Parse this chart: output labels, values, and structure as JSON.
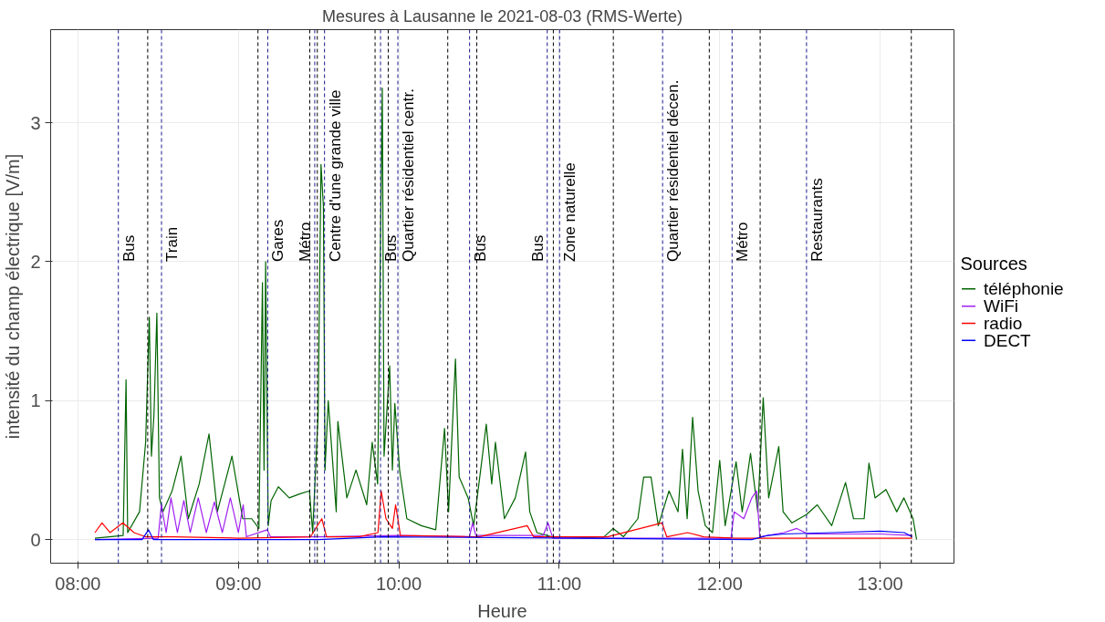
{
  "chart_data": {
    "type": "line",
    "title": "Mesures à Lausanne le 2021-08-03 (RMS-Werte)",
    "xlabel": "Heure",
    "ylabel": "intensité du champ électrique [V/m]",
    "legend_title": "Sources",
    "legend": "right",
    "grid": true,
    "xlim": [
      7.83,
      13.46
    ],
    "xticks": [
      {
        "value": 8,
        "label": "08:00"
      },
      {
        "value": 9,
        "label": "09:00"
      },
      {
        "value": 10,
        "label": "10:00"
      },
      {
        "value": 11,
        "label": "11:00"
      },
      {
        "value": 12,
        "label": "12:00"
      },
      {
        "value": 13,
        "label": "13:00"
      }
    ],
    "ylim": [
      -0.17,
      3.67
    ],
    "yticks": [
      0,
      1,
      2,
      3
    ],
    "series": [
      {
        "name": "téléphonie",
        "color": "#006400",
        "x": [
          8.106,
          8.282,
          8.3,
          8.31,
          8.384,
          8.422,
          8.445,
          8.458,
          8.474,
          8.492,
          8.508,
          8.53,
          8.587,
          8.643,
          8.688,
          8.756,
          8.817,
          8.869,
          8.96,
          9.027,
          9.083,
          9.128,
          9.15,
          9.16,
          9.17,
          9.186,
          9.204,
          9.249,
          9.317,
          9.385,
          9.443,
          9.463,
          9.497,
          9.515,
          9.53,
          9.54,
          9.56,
          9.61,
          9.62,
          9.676,
          9.733,
          9.8,
          9.834,
          9.868,
          9.897,
          9.908,
          9.943,
          9.96,
          9.975,
          10.005,
          10.05,
          10.14,
          10.23,
          10.285,
          10.31,
          10.353,
          10.376,
          10.432,
          10.466,
          10.51,
          10.545,
          10.579,
          10.602,
          10.658,
          10.726,
          10.79,
          10.816,
          10.861,
          10.952,
          11.04,
          11.27,
          11.336,
          11.4,
          11.49,
          11.526,
          11.572,
          11.617,
          11.684,
          11.74,
          11.768,
          11.797,
          11.831,
          11.865,
          11.91,
          11.955,
          12.0,
          12.034,
          12.102,
          12.14,
          12.192,
          12.237,
          12.271,
          12.305,
          12.368,
          12.395,
          12.45,
          12.54,
          12.608,
          12.698,
          12.784,
          12.834,
          12.9,
          12.93,
          12.968,
          13.036,
          13.103,
          13.148,
          13.205,
          13.227
        ],
        "values": [
          0.01,
          0.03,
          1.15,
          0.05,
          0.2,
          0.7,
          1.6,
          0.6,
          0.9,
          1.63,
          0.3,
          0.2,
          0.35,
          0.6,
          0.15,
          0.4,
          0.76,
          0.2,
          0.6,
          0.15,
          0.15,
          0.08,
          1.85,
          0.5,
          2.0,
          0.1,
          0.28,
          0.38,
          0.3,
          0.33,
          0.35,
          0.05,
          0.9,
          2.7,
          2.4,
          0.5,
          1.0,
          0.2,
          0.85,
          0.3,
          0.5,
          0.25,
          0.7,
          0.4,
          3.25,
          0.6,
          1.25,
          0.5,
          0.98,
          0.5,
          0.15,
          0.1,
          0.07,
          0.8,
          0.2,
          1.3,
          0.45,
          0.3,
          0.1,
          0.5,
          0.83,
          0.4,
          0.7,
          0.15,
          0.3,
          0.63,
          0.2,
          0.05,
          0.02,
          0.02,
          0.01,
          0.08,
          0.02,
          0.15,
          0.45,
          0.45,
          0.1,
          0.35,
          0.2,
          0.65,
          0.15,
          0.88,
          0.35,
          0.1,
          0.05,
          0.57,
          0.1,
          0.56,
          0.2,
          0.62,
          0.2,
          1.02,
          0.3,
          0.67,
          0.2,
          0.12,
          0.18,
          0.25,
          0.1,
          0.41,
          0.15,
          0.15,
          0.55,
          0.3,
          0.36,
          0.2,
          0.3,
          0.15,
          0.0
        ]
      },
      {
        "name": "WiFi",
        "color": "#a020f0",
        "x": [
          8.106,
          8.5,
          8.52,
          8.55,
          8.58,
          8.62,
          8.66,
          8.7,
          8.75,
          8.8,
          8.85,
          8.9,
          8.95,
          9.0,
          9.03,
          9.05,
          9.18,
          9.2,
          9.5,
          10.0,
          10.44,
          10.46,
          10.48,
          10.9,
          10.93,
          10.96,
          11.5,
          12.07,
          12.09,
          12.15,
          12.2,
          12.23,
          12.25,
          12.4,
          12.48,
          12.55,
          13.0,
          13.2
        ],
        "values": [
          0.0,
          0.01,
          0.25,
          0.05,
          0.3,
          0.05,
          0.28,
          0.05,
          0.3,
          0.05,
          0.27,
          0.05,
          0.3,
          0.05,
          0.25,
          0.02,
          0.07,
          0.02,
          0.02,
          0.03,
          0.02,
          0.12,
          0.03,
          0.03,
          0.12,
          0.01,
          0.01,
          0.01,
          0.2,
          0.15,
          0.3,
          0.35,
          0.02,
          0.05,
          0.08,
          0.04,
          0.04,
          0.03
        ]
      },
      {
        "name": "radio",
        "color": "#ff0000",
        "x": [
          8.106,
          8.15,
          8.2,
          8.28,
          8.35,
          8.42,
          8.6,
          9.0,
          9.45,
          9.52,
          9.55,
          9.75,
          9.87,
          9.89,
          9.92,
          9.96,
          9.98,
          10.01,
          10.5,
          10.8,
          10.84,
          11.3,
          11.64,
          11.67,
          11.8,
          11.9,
          12.1,
          13.2
        ],
        "values": [
          0.05,
          0.12,
          0.05,
          0.12,
          0.05,
          0.02,
          0.02,
          0.01,
          0.02,
          0.15,
          0.02,
          0.02,
          0.05,
          0.35,
          0.15,
          0.08,
          0.25,
          0.03,
          0.02,
          0.1,
          0.02,
          0.02,
          0.12,
          0.02,
          0.05,
          0.02,
          0.01,
          0.01
        ]
      },
      {
        "name": "DECT",
        "color": "#0000ff",
        "x": [
          8.106,
          8.4,
          8.44,
          8.47,
          9.5,
          9.9,
          12.2,
          12.3,
          12.4,
          12.7,
          13.0,
          13.15,
          13.2
        ],
        "values": [
          0.0,
          0.0,
          0.07,
          0.0,
          0.0,
          0.02,
          0.0,
          0.03,
          0.04,
          0.05,
          0.06,
          0.05,
          0.02
        ]
      }
    ],
    "ref_lines": [
      {
        "axis": "x",
        "value": 8.252,
        "label": "Bus",
        "color": "#1a1a8c",
        "line_style": "dashed"
      },
      {
        "axis": "x",
        "value": 8.435,
        "label": null,
        "color": "#000000",
        "line_style": "dashed"
      },
      {
        "axis": "x",
        "value": 8.521,
        "label": "Train",
        "color": "#1a1a8c",
        "line_style": "dashed"
      },
      {
        "axis": "x",
        "value": 9.122,
        "label": null,
        "color": "#000000",
        "line_style": "dashed"
      },
      {
        "axis": "x",
        "value": 9.183,
        "label": "Gares",
        "color": "#1a1a8c",
        "line_style": "dashed"
      },
      {
        "axis": "x",
        "value": 9.445,
        "label": null,
        "color": "#000000",
        "line_style": "dashed"
      },
      {
        "axis": "x",
        "value": 9.476,
        "label": "Métro",
        "color": "#1a1a8c",
        "line_style": "dashed"
      },
      {
        "axis": "x",
        "value": 9.492,
        "label": null,
        "color": "#000000",
        "line_style": "dashed"
      },
      {
        "axis": "x",
        "value": 9.537,
        "label": "Centre d'une grande ville",
        "color": "#1a1a8c",
        "line_style": "dashed"
      },
      {
        "axis": "x",
        "value": 9.852,
        "label": null,
        "color": "#000000",
        "line_style": "dashed"
      },
      {
        "axis": "x",
        "value": 9.886,
        "label": "Bus",
        "color": "#1a1a8c",
        "line_style": "dashed"
      },
      {
        "axis": "x",
        "value": 9.934,
        "label": null,
        "color": "#000000",
        "line_style": "dashed"
      },
      {
        "axis": "x",
        "value": 9.994,
        "label": "Quartier résidentiel centr.",
        "color": "#1a1a8c",
        "line_style": "dashed"
      },
      {
        "axis": "x",
        "value": 10.305,
        "label": null,
        "color": "#000000",
        "line_style": "dashed"
      },
      {
        "axis": "x",
        "value": 10.441,
        "label": "Bus",
        "color": "#1a1a8c",
        "line_style": "dashed"
      },
      {
        "axis": "x",
        "value": 10.486,
        "label": null,
        "color": "#000000",
        "line_style": "dashed"
      },
      {
        "axis": "x",
        "value": 10.925,
        "label": "Bus",
        "color": "#1a1a8c",
        "line_style": "dashed"
      },
      {
        "axis": "x",
        "value": 10.963,
        "label": null,
        "color": "#000000",
        "line_style": "dashed"
      },
      {
        "axis": "x",
        "value": 11.002,
        "label": "Zone naturelle",
        "color": "#1a1a8c",
        "line_style": "dashed"
      },
      {
        "axis": "x",
        "value": 11.337,
        "label": null,
        "color": "#000000",
        "line_style": "dashed"
      },
      {
        "axis": "x",
        "value": 11.644,
        "label": "Quartier résidentiel décen.",
        "color": "#1a1a8c",
        "line_style": "dashed"
      },
      {
        "axis": "x",
        "value": 11.935,
        "label": null,
        "color": "#000000",
        "line_style": "dashed"
      },
      {
        "axis": "x",
        "value": 12.077,
        "label": "Métro",
        "color": "#1a1a8c",
        "line_style": "dashed"
      },
      {
        "axis": "x",
        "value": 12.252,
        "label": null,
        "color": "#000000",
        "line_style": "dashed"
      },
      {
        "axis": "x",
        "value": 12.541,
        "label": "Restaurants",
        "color": "#1a1a8c",
        "line_style": "dashed"
      },
      {
        "axis": "x",
        "value": 13.194,
        "label": null,
        "color": "#000000",
        "line_style": "dashed"
      }
    ]
  }
}
